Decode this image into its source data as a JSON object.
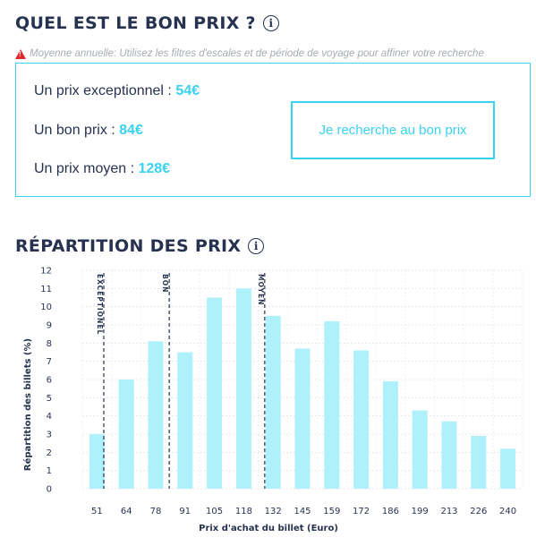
{
  "section1": {
    "title": "QUEL EST LE BON PRIX ?",
    "info_icon": "info-icon",
    "notice": "Moyenne annuelle: Utilisez les filtres d'escales et de période de voyage pour affiner votre recherche",
    "notice_icon": "warning-icon",
    "prices": [
      {
        "label": "Un prix exceptionnel : ",
        "value": "54€"
      },
      {
        "label": "Un bon prix : ",
        "value": "84€"
      },
      {
        "label": "Un prix moyen : ",
        "value": "128€"
      }
    ],
    "button_label": "Je recherche au bon prix",
    "accent_color": "#3ad2f0"
  },
  "section2": {
    "title": "RÉPARTITION DES PRIX",
    "info_icon": "info-icon"
  },
  "chart_data": {
    "type": "bar",
    "categories": [
      "51",
      "64",
      "78",
      "91",
      "105",
      "118",
      "132",
      "145",
      "159",
      "172",
      "186",
      "199",
      "213",
      "226",
      "240"
    ],
    "values": [
      3.0,
      6.0,
      8.1,
      7.5,
      10.5,
      11.0,
      9.5,
      7.7,
      9.2,
      7.6,
      5.9,
      4.3,
      3.7,
      2.9,
      2.2
    ],
    "xlabel": "Prix d'achat du billet (Euro)",
    "ylabel": "Répartition des billets (%)",
    "ylim": [
      0,
      12
    ],
    "yticks": [
      "0",
      "1",
      "2",
      "3",
      "4",
      "5",
      "6",
      "7",
      "8",
      "9",
      "10",
      "11",
      "12"
    ],
    "grid": true,
    "bar_color": "#aef0fb",
    "markers": [
      {
        "label": "EXCEPTIONEL",
        "x_value": 54
      },
      {
        "label": "BON",
        "x_value": 84
      },
      {
        "label": "MOYEN",
        "x_value": 128
      }
    ]
  }
}
